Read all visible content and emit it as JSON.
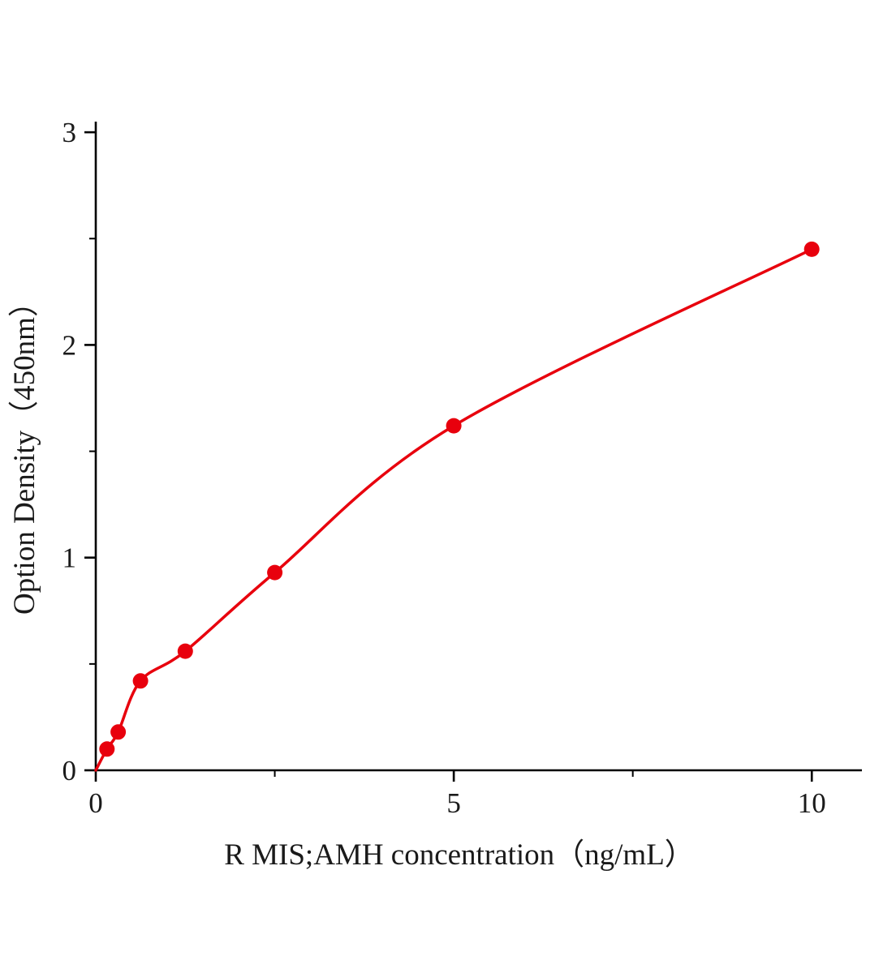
{
  "chart_data": {
    "type": "scatter",
    "title": "",
    "xlabel": "R MIS;AMH  concentration（ng/mL）",
    "ylabel": "Option Density（450nm）",
    "x_ticks": [
      0,
      5,
      10
    ],
    "y_ticks": [
      0,
      1,
      2,
      3
    ],
    "x_minor_ticks": [
      2.5,
      7.5
    ],
    "y_minor_ticks": [
      0.5,
      1.5,
      2.5
    ],
    "xlim": [
      0,
      10.7
    ],
    "ylim": [
      0,
      3.05
    ],
    "grid": false,
    "legend": "none",
    "curve_color": "#e8000d",
    "point_color": "#e8000d",
    "axis_color": "#000000",
    "point_radius": 9.5,
    "curve_width": 3.5,
    "curve_starts_at_origin": true,
    "points": {
      "x": [
        0.156,
        0.3125,
        0.625,
        1.25,
        2.5,
        5,
        10
      ],
      "y": [
        0.1,
        0.18,
        0.42,
        0.56,
        0.93,
        1.62,
        2.45
      ]
    }
  }
}
